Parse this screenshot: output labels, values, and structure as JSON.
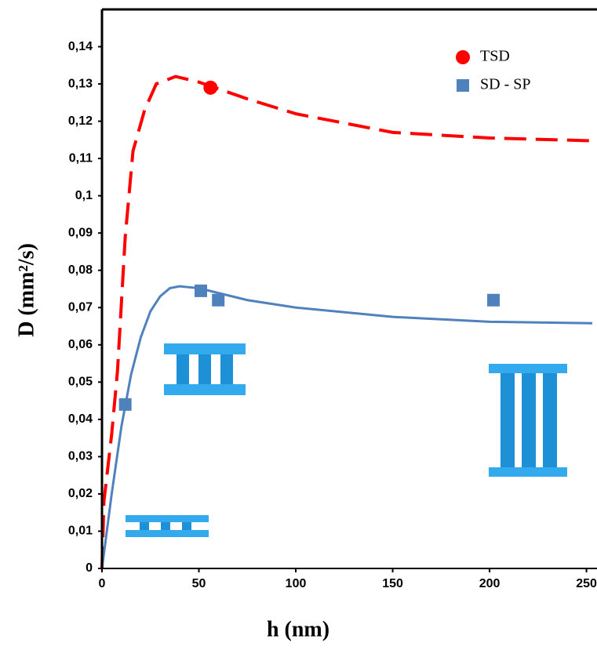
{
  "chart_data": {
    "type": "scatter",
    "xlabel": "h (nm)",
    "ylabel": "D (mm²/s)",
    "xlim": [
      0,
      253
    ],
    "ylim": [
      0,
      0.15
    ],
    "xticks": [
      0,
      50,
      100,
      150,
      200,
      250
    ],
    "yticks": [
      0,
      {
        "value": 0.01,
        "label": "0,01"
      },
      {
        "value": 0.02,
        "label": "0,02"
      },
      {
        "value": 0.03,
        "label": "0,03"
      },
      {
        "value": 0.04,
        "label": "0,04"
      },
      {
        "value": 0.05,
        "label": "0,05"
      },
      {
        "value": 0.06,
        "label": "0,06"
      },
      {
        "value": 0.07,
        "label": "0,07"
      },
      {
        "value": 0.08,
        "label": "0,08"
      },
      {
        "value": 0.09,
        "label": "0,09"
      },
      {
        "value": 0.1,
        "label": "0,1"
      },
      {
        "value": 0.11,
        "label": "0,11"
      },
      {
        "value": 0.12,
        "label": "0,12"
      },
      {
        "value": 0.13,
        "label": "0,13"
      },
      {
        "value": 0.14,
        "label": "0,14"
      }
    ],
    "legend": "upper right",
    "series": [
      {
        "name": "TSD",
        "color": "#ff0000",
        "marker": "circle",
        "x": [
          56
        ],
        "values": [
          0.129
        ]
      },
      {
        "name": "SD - SP",
        "color": "#4f81bd",
        "marker": "square",
        "x": [
          12,
          51,
          60,
          202
        ],
        "values": [
          0.044,
          0.0745,
          0.072,
          0.072
        ]
      }
    ],
    "curves": [
      {
        "color": "#ff0000",
        "dashed": true,
        "x": [
          0,
          1,
          5,
          8,
          12,
          16,
          22,
          28,
          38,
          50,
          75,
          100,
          150,
          200,
          250,
          253
        ],
        "values": [
          0,
          0.018,
          0.036,
          0.053,
          0.089,
          0.112,
          0.123,
          0.13,
          0.132,
          0.1305,
          0.126,
          0.122,
          0.117,
          0.1155,
          0.1148,
          0.1148
        ]
      },
      {
        "color": "#4f81bd",
        "dashed": false,
        "x": [
          0,
          5,
          10,
          15,
          20,
          25,
          30,
          35,
          40,
          50,
          75,
          100,
          150,
          200,
          253
        ],
        "values": [
          0,
          0.02,
          0.038,
          0.052,
          0.062,
          0.069,
          0.073,
          0.0752,
          0.0757,
          0.0752,
          0.072,
          0.07,
          0.0675,
          0.0662,
          0.0658
        ]
      }
    ]
  }
}
